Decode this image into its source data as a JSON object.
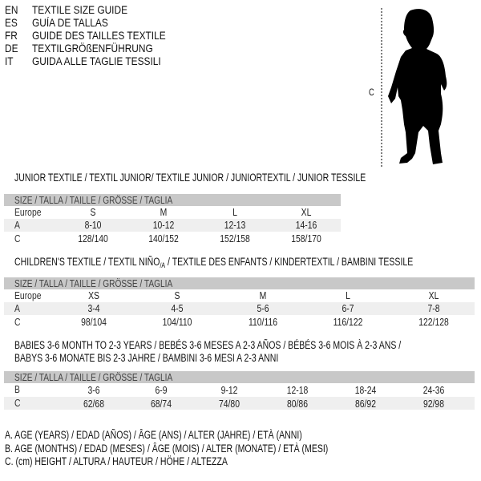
{
  "languages": [
    {
      "code": "EN",
      "label": "TEXTILE SIZE GUIDE"
    },
    {
      "code": "ES",
      "label": "GUÍA DE TALLAS"
    },
    {
      "code": "FR",
      "label": "GUIDE DES TAILLES TEXTILE"
    },
    {
      "code": "DE",
      "label": "TEXTILGRÖßENFÜHRUNG"
    },
    {
      "code": "IT",
      "label": "GUIDA ALLE TAGLIE TESSILI"
    }
  ],
  "figure": {
    "measure_label": "C",
    "icon": "child-silhouette"
  },
  "size_header": "SIZE / TALLA / TAILLE / GRÖSSE / TAGLIA",
  "junior": {
    "title": "JUNIOR TEXTILE / TEXTIL JUNIOR/ TEXTILE JUNIOR / JUNIORTEXTIL / JUNIOR TESSILE",
    "rows": [
      {
        "label": "Europe",
        "values": [
          "S",
          "M",
          "L",
          "XL"
        ]
      },
      {
        "label": "A",
        "values": [
          "8-10",
          "10-12",
          "12-13",
          "14-16"
        ]
      },
      {
        "label": "C",
        "values": [
          "128/140",
          "140/152",
          "152/158",
          "158/170"
        ]
      }
    ]
  },
  "children": {
    "title_pre": "CHILDREN'S TEXTILE / TEXTIL NIÑO",
    "title_sub": "/A",
    "title_post": " / TEXTILE DES ENFANTS / KINDERTEXTIL / BAMBINI TESSILE",
    "rows": [
      {
        "label": "Europe",
        "values": [
          "XS",
          "S",
          "M",
          "L",
          "XL"
        ]
      },
      {
        "label": "A",
        "values": [
          "3-4",
          "4-5",
          "5-6",
          "6-7",
          "7-8"
        ]
      },
      {
        "label": "C",
        "values": [
          "98/104",
          "104/110",
          "110/116",
          "116/122",
          "122/128"
        ]
      }
    ]
  },
  "babies": {
    "title_line1": "BABIES 3-6 MONTH TO 2-3 YEARS / BEBÉS 3-6 MESES A 2-3 AÑOS / BÉBÉS 3-6 MOIS À 2-3 ANS /",
    "title_line2": "BABYS 3-6 MONATE BIS 2-3 JAHRE / BAMBINI 3-6 MESI A 2-3 ANNI",
    "rows": [
      {
        "label": "B",
        "values": [
          "3-6",
          "6-9",
          "9-12",
          "12-18",
          "18-24",
          "24-36"
        ]
      },
      {
        "label": "C",
        "values": [
          "62/68",
          "68/74",
          "74/80",
          "80/86",
          "86/92",
          "92/98"
        ]
      }
    ]
  },
  "legend": [
    "A. AGE (YEARS) / EDAD (AÑOS) / ÂGE (ANS) / ALTER (JAHRE) / ETÀ (ANNI)",
    "B. AGE (MONTHS) / EDAD (MESES) / ÂGE (MOIS) / ALTER (MONATE) / ETÀ (MESI)",
    "C. (cm) HEIGHT / ALTURA / HAUTEUR / HÖHE / ALTEZZA"
  ]
}
